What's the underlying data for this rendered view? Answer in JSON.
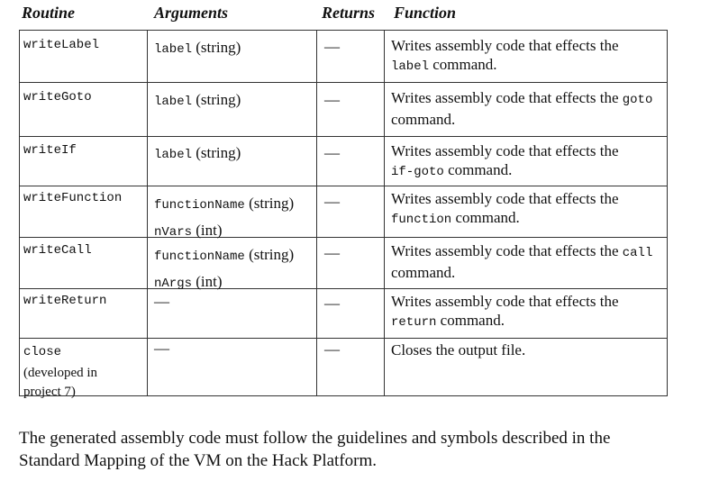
{
  "headers": {
    "routine": "Routine",
    "arguments": "Arguments",
    "returns": "Returns",
    "function": "Function"
  },
  "rows": [
    {
      "routine": "writeLabel",
      "arg1_name": "label",
      "arg1_type": " (string)",
      "returns": "—",
      "func_a": "Writes assembly code that effects the",
      "func_code": "label",
      "func_b": " command."
    },
    {
      "routine": "writeGoto",
      "arg1_name": "label",
      "arg1_type": " (string)",
      "returns": "—",
      "func_a": "Writes assembly code that effects the ",
      "func_code": "goto",
      "func_b": "command."
    },
    {
      "routine": "writeIf",
      "arg1_name": "label",
      "arg1_type": " (string)",
      "returns": "—",
      "func_a": "Writes assembly code that effects the",
      "func_code": "if-goto",
      "func_b": " command."
    },
    {
      "routine": "writeFunction",
      "arg1_name": "functionName",
      "arg1_type": " (string)",
      "arg2_name": "nVars",
      "arg2_type": " (int)",
      "returns": "—",
      "func_a": "Writes assembly code that effects the",
      "func_code": "function",
      "func_b": " command."
    },
    {
      "routine": "writeCall",
      "arg1_name": "functionName",
      "arg1_type": " (string)",
      "arg2_name": "nArgs",
      "arg2_type": " (int)",
      "returns": "—",
      "func_a": "Writes assembly code that effects the ",
      "func_code": "call",
      "func_b": "command."
    },
    {
      "routine": "writeReturn",
      "arg_dash": "—",
      "returns": "—",
      "func_a": "Writes assembly code that effects the",
      "func_code": "return",
      "func_b": " command."
    },
    {
      "routine": "close",
      "routine_note_1": "(developed in",
      "routine_note_2": "project 7)",
      "arg_dash": "—",
      "returns": "—",
      "func_a": "Closes the output file."
    }
  ],
  "footer": {
    "line1": "The generated assembly code must follow the guidelines and symbols described in the",
    "line2": "Standard Mapping of the VM on the Hack Platform."
  }
}
